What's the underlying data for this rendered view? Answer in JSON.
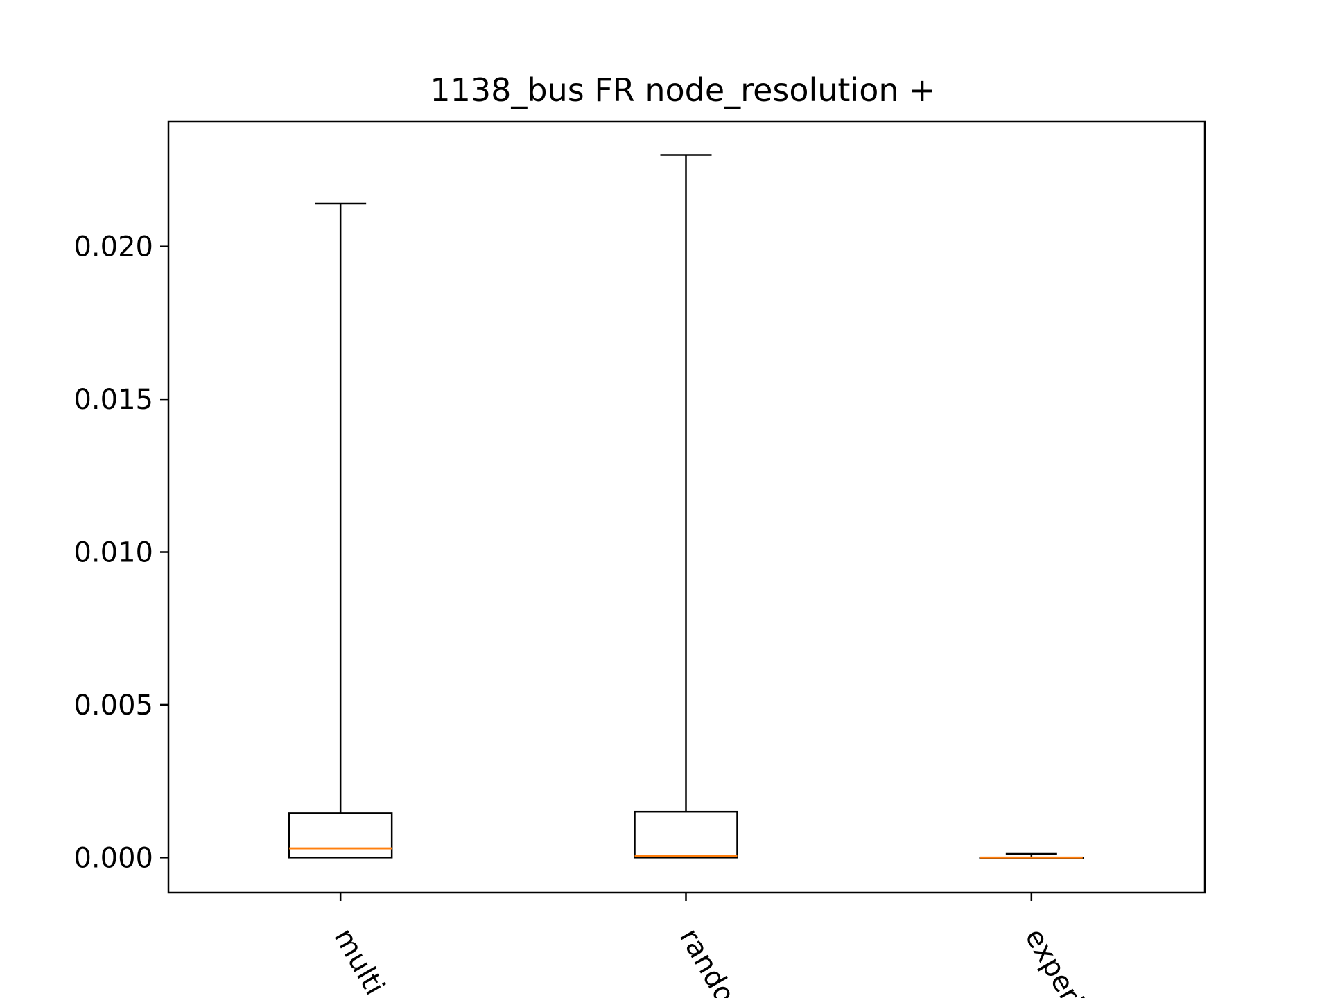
{
  "chart_data": {
    "type": "box",
    "title": "1138_bus FR node_resolution +",
    "xlabel": "",
    "ylabel": "",
    "ylim": [
      -0.00115,
      0.0241
    ],
    "yticks": [
      0.0,
      0.005,
      0.01,
      0.015,
      0.02
    ],
    "ytick_labels": [
      "0.000",
      "0.005",
      "0.010",
      "0.015",
      "0.020"
    ],
    "categories": [
      "multi_o",
      "random",
      "experie"
    ],
    "boxes": [
      {
        "whisker_low": 0.0,
        "q1": 0.0,
        "median": 0.0003,
        "q3": 0.00145,
        "whisker_high": 0.0214
      },
      {
        "whisker_low": 0.0,
        "q1": 0.0,
        "median": 5e-05,
        "q3": 0.0015,
        "whisker_high": 0.023
      },
      {
        "whisker_low": 0.0,
        "q1": 0.0,
        "median": 0.0,
        "q3": 0.0,
        "whisker_high": 0.00012
      }
    ],
    "grid": false,
    "colors": {
      "box": "#000000",
      "median": "#ff7f0e",
      "axes": "#000000",
      "background": "#ffffff"
    }
  }
}
